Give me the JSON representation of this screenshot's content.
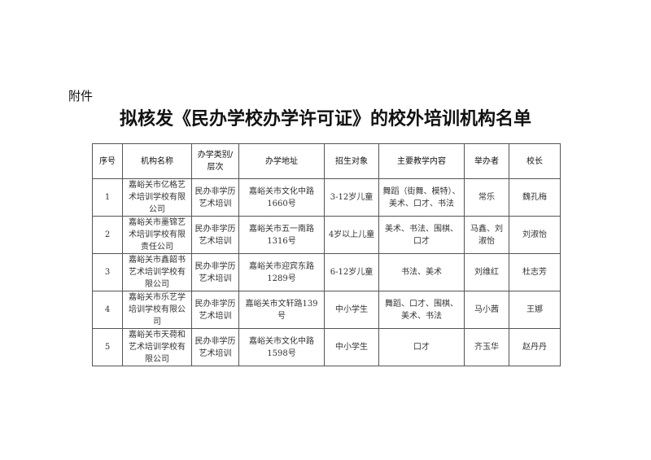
{
  "attachment_label": "附件",
  "title": "拟核发《民办学校办学许可证》的校外培训机构名单",
  "table": {
    "headers": [
      "序号",
      "机构名称",
      "办学类别/层次",
      "办学地址",
      "招生对象",
      "主要教学内容",
      "举办者",
      "校长"
    ],
    "rows": [
      [
        "1",
        "嘉峪关市亿格艺术培训学校有限公司",
        "民办非学历艺术培训",
        "嘉峪关市文化中路1660号",
        "3-12岁儿童",
        "舞蹈（街舞、模特）、美术、口才、书法",
        "常乐",
        "魏孔梅"
      ],
      [
        "2",
        "嘉峪关市墨锦艺术培训学校有限责任公司",
        "民办非学历艺术培训",
        "嘉峪关市五一南路1316号",
        "4岁以上儿童",
        "美术、书法、围棋、口才",
        "马鑫、刘淑怡",
        "刘淑怡"
      ],
      [
        "3",
        "嘉峪关市鑫韶书艺术培训学校有限公司",
        "民办非学历艺术培训",
        "嘉峪关市迎宾东路1289号",
        "6-12岁儿童",
        "书法、美术",
        "刘维红",
        "杜志芳"
      ],
      [
        "4",
        "嘉峪关市乐艺学培训学校有限公司",
        "民办非学历艺术培训",
        "嘉峪关市文轩路139号",
        "中小学生",
        "舞蹈、口才、围棋、美术、书法",
        "马小茜",
        "王娜"
      ],
      [
        "5",
        "嘉峪关市天荷和艺术培训学校有限公司",
        "民办非学历艺术培训",
        "嘉峪关市文化中路1598号",
        "中小学生",
        "口才",
        "齐玉华",
        "赵丹丹"
      ]
    ]
  }
}
